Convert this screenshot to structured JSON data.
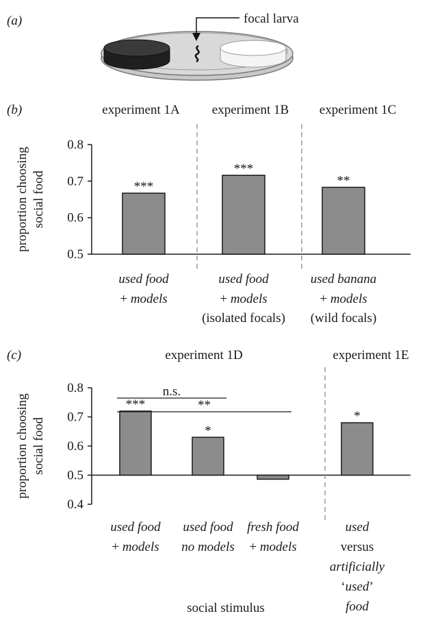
{
  "panel_labels": {
    "a": "(a)",
    "b": "(b)",
    "c": "(c)"
  },
  "diagram": {
    "label": "focal larva",
    "left_dish_color": "#2b2b2b",
    "right_dish_color": "#ffffff",
    "plate_color": "#d9d9d9"
  },
  "x_axis_title": "social stimulus",
  "colors": {
    "bar": "#8c8c8c",
    "bar_edge": "#1a1a1a",
    "axis": "#1a1a1a",
    "divider": "#999999"
  },
  "chart_data": [
    {
      "type": "bar",
      "panel": "(b)",
      "ylabel": "proportion choosing social food",
      "ylabel_lines": [
        "proportion choosing",
        "social food"
      ],
      "ylim": [
        0.5,
        0.8
      ],
      "yticks": [
        "0.5",
        "0.6",
        "0.7",
        "0.8"
      ],
      "groups": [
        "experiment 1A",
        "experiment 1B",
        "experiment 1C"
      ],
      "categories": [
        {
          "lines": [
            [
              "used food",
              true
            ],
            [
              "+ models",
              "mixed"
            ]
          ]
        },
        {
          "lines": [
            [
              "used food",
              true
            ],
            [
              "+ models",
              "mixed"
            ],
            [
              "(isolated focals)",
              false
            ]
          ]
        },
        {
          "lines": [
            [
              "used banana",
              true
            ],
            [
              "+ models",
              "mixed"
            ],
            [
              "(wild focals)",
              false
            ]
          ]
        }
      ],
      "values": [
        0.667,
        0.716,
        0.683
      ],
      "significance": [
        "***",
        "***",
        "**"
      ]
    },
    {
      "type": "bar",
      "panel": "(c)",
      "ylabel": "proportion choosing social food",
      "ylabel_lines": [
        "proportion choosing",
        "social food"
      ],
      "ylim": [
        0.4,
        0.8
      ],
      "yticks": [
        "0.4",
        "0.5",
        "0.6",
        "0.7",
        "0.8"
      ],
      "groups": [
        "experiment 1D",
        "experiment 1E"
      ],
      "categories": [
        {
          "lines": [
            [
              "used food",
              true
            ],
            [
              "+ models",
              "mixed"
            ]
          ]
        },
        {
          "lines": [
            [
              "used food",
              true
            ],
            [
              "no models",
              true
            ]
          ]
        },
        {
          "lines": [
            [
              "fresh food",
              true
            ],
            [
              "+ models",
              "mixed"
            ]
          ]
        },
        {
          "lines": [
            [
              "used",
              true
            ],
            [
              "versus",
              false
            ],
            [
              "artificially",
              true
            ],
            [
              "‘used’",
              "quoted"
            ],
            [
              "food",
              true
            ]
          ]
        }
      ],
      "values": [
        0.72,
        0.63,
        0.486,
        0.68
      ],
      "significance": [
        "***",
        "*",
        "",
        "*"
      ],
      "comparisons": [
        {
          "label": "n.s.",
          "from": 0,
          "to": 1
        },
        {
          "label": "**",
          "from": 0,
          "to": 2
        }
      ]
    }
  ]
}
